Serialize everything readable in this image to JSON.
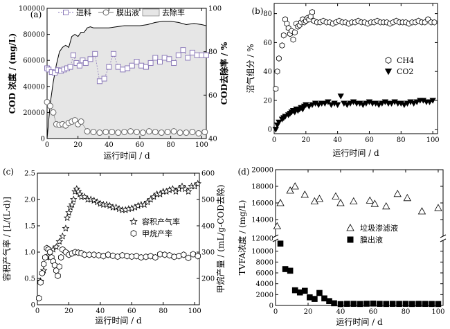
{
  "chart_data": [
    {
      "type": "line",
      "panel_label": "(a)",
      "xlabel": "运行时间 / d",
      "ylabel": "COD 浓度 / (mg/L)",
      "y2label": "COD去除率 / %",
      "xlim": [
        0,
        103
      ],
      "ylim": [
        0,
        100000
      ],
      "y2lim": [
        40,
        100
      ],
      "xticks": [
        "0",
        "20",
        "40",
        "60",
        "80",
        "100"
      ],
      "yticks": [
        "0",
        "20000",
        "40000",
        "60000",
        "80000",
        "100000"
      ],
      "y2ticks": [
        "40",
        "60",
        "80",
        "100"
      ],
      "legend": [
        "进料",
        "膜出液",
        "去除率"
      ],
      "series": [
        {
          "name": "进料",
          "marker": "square",
          "x": [
            0,
            1,
            3,
            5,
            7,
            9,
            11,
            13,
            15,
            17,
            19,
            21,
            23,
            25,
            28,
            31,
            34,
            37,
            40,
            43,
            46,
            49,
            52,
            55,
            58,
            61,
            64,
            67,
            70,
            73,
            76,
            79,
            82,
            85,
            88,
            91,
            94,
            97,
            100,
            103
          ],
          "y": [
            54000,
            53000,
            51000,
            50500,
            52500,
            52000,
            53000,
            54000,
            55000,
            64000,
            58000,
            56000,
            60000,
            58000,
            61000,
            65000,
            44000,
            46000,
            55000,
            65000,
            55000,
            53000,
            54000,
            56000,
            59000,
            56000,
            55000,
            58000,
            62000,
            59000,
            62000,
            61000,
            58000,
            64000,
            68000,
            62000,
            66000,
            64000,
            64000,
            64000
          ]
        },
        {
          "name": "膜出液",
          "marker": "circle",
          "x": [
            0,
            2,
            4,
            6,
            8,
            10,
            12,
            14,
            16,
            18,
            20,
            22,
            26,
            30,
            34,
            38,
            42,
            46,
            50,
            54,
            58,
            62,
            66,
            70,
            74,
            78,
            82,
            86,
            90,
            94,
            98,
            102
          ],
          "y": [
            28000,
            25000,
            20000,
            11000,
            10500,
            11000,
            10000,
            12000,
            13000,
            14000,
            11000,
            13000,
            5500,
            5000,
            4500,
            5000,
            5000,
            4500,
            5000,
            5500,
            5000,
            4500,
            5500,
            5000,
            4500,
            5000,
            5500,
            4500,
            4500,
            5000,
            4000,
            5000
          ]
        },
        {
          "name": "去除率",
          "fill": "area",
          "x": [
            0,
            2,
            4,
            6,
            8,
            10,
            12,
            14,
            16,
            18,
            20,
            22,
            24,
            26,
            28,
            30,
            35,
            40,
            45,
            50,
            55,
            60,
            65,
            70,
            75,
            80,
            85,
            90,
            95,
            100,
            103
          ],
          "y": [
            40,
            56,
            66,
            74,
            80,
            82,
            83,
            82,
            87,
            88,
            87,
            89,
            89,
            91,
            91.5,
            91,
            91,
            91,
            91.5,
            92,
            92,
            92,
            92.5,
            93.5,
            94,
            94,
            93.5,
            92.5,
            93,
            92.5,
            92
          ]
        }
      ]
    },
    {
      "type": "scatter",
      "panel_label": "(b)",
      "xlabel": "运行时间 / d",
      "ylabel": "沼气组分 / %",
      "xlim": [
        0,
        103
      ],
      "ylim": [
        -3,
        87
      ],
      "xticks": [
        "0",
        "20",
        "40",
        "60",
        "80",
        "100"
      ],
      "yticks": [
        "0",
        "20",
        "40",
        "60",
        "80"
      ],
      "legend": [
        "CH4",
        "CO2"
      ],
      "series": [
        {
          "name": "CH4",
          "marker": "hexagon",
          "x": [
            1,
            2,
            3,
            5,
            6,
            7,
            8,
            9,
            10,
            11,
            12,
            13,
            14,
            15,
            16,
            17,
            18,
            19,
            20,
            21,
            22,
            23,
            24,
            25,
            27,
            29,
            31,
            33,
            35,
            37,
            39,
            41,
            43,
            45,
            47,
            49,
            51,
            53,
            55,
            57,
            59,
            61,
            63,
            65,
            67,
            69,
            71,
            73,
            75,
            77,
            79,
            81,
            83,
            85,
            87,
            89,
            91,
            93,
            95,
            97,
            99,
            101
          ],
          "y": [
            28,
            40,
            49,
            58,
            65,
            76,
            73,
            70,
            66,
            68,
            62,
            67,
            73,
            71,
            72,
            74,
            76,
            74,
            75,
            77,
            76,
            78,
            81,
            75,
            74,
            74,
            75,
            74,
            74,
            73,
            74,
            75,
            74,
            74,
            73,
            74,
            74,
            75,
            74,
            74,
            73,
            74,
            74,
            75,
            74,
            74,
            74,
            73,
            74,
            75,
            74,
            74,
            74,
            73,
            74,
            74,
            75,
            74,
            74,
            76,
            74,
            74
          ]
        },
        {
          "name": "CO2",
          "marker": "triangle-down",
          "x": [
            1,
            2,
            3,
            5,
            6,
            7,
            9,
            10,
            11,
            12,
            13,
            14,
            15,
            16,
            17,
            18,
            19,
            20,
            22,
            24,
            26,
            28,
            30,
            32,
            34,
            36,
            38,
            40,
            42,
            44,
            46,
            48,
            50,
            52,
            54,
            56,
            58,
            60,
            62,
            64,
            66,
            68,
            70,
            72,
            74,
            76,
            78,
            80,
            82,
            84,
            86,
            88,
            90,
            92,
            94,
            96,
            98,
            100
          ],
          "y": [
            0,
            3,
            5,
            7,
            8,
            9,
            10,
            11,
            12,
            13,
            12,
            14,
            13,
            14,
            15,
            14,
            16,
            17,
            16,
            17,
            18,
            17,
            18,
            18,
            19,
            17,
            18,
            17,
            23,
            18,
            17,
            18,
            19,
            18,
            18,
            17,
            18,
            19,
            18,
            18,
            17,
            18,
            19,
            18,
            18,
            19,
            18,
            18,
            17,
            18,
            19,
            18,
            19,
            20,
            20,
            19,
            19,
            20
          ]
        }
      ]
    },
    {
      "type": "scatter",
      "panel_label": "(c)",
      "xlabel": "运行时间 / d",
      "ylabel": "容积产气率 / [L/(L·d)]",
      "y2label": "甲烷产量 / (mL/g-COD去除)",
      "xlim": [
        0,
        103
      ],
      "ylim": [
        0,
        2.5
      ],
      "y2lim": [
        100,
        600
      ],
      "xticks": [
        "0",
        "20",
        "40",
        "60",
        "80",
        "100"
      ],
      "yticks": [
        "0",
        "0.5",
        "1.0",
        "1.5",
        "2.0",
        "2.5"
      ],
      "y2ticks": [
        "200",
        "300",
        "400",
        "500",
        "600"
      ],
      "legend": [
        "容积产气率",
        "甲烷产率"
      ],
      "series": [
        {
          "name": "容积产气率",
          "marker": "star",
          "axis": "left",
          "x": [
            2,
            4,
            6,
            8,
            10,
            12,
            14,
            16,
            18,
            19,
            20,
            21,
            22,
            23,
            24,
            25,
            26,
            27,
            28,
            30,
            32,
            34,
            36,
            38,
            40,
            42,
            44,
            46,
            48,
            50,
            52,
            54,
            56,
            58,
            60,
            62,
            64,
            66,
            68,
            70,
            72,
            74,
            76,
            78,
            80,
            82,
            84,
            86,
            88,
            90,
            92,
            94,
            96,
            98,
            100,
            102
          ],
          "y": [
            0.45,
            0.65,
            0.9,
            1.0,
            1.05,
            1.1,
            1.2,
            1.3,
            1.45,
            1.65,
            1.75,
            1.85,
            1.9,
            2.0,
            2.15,
            2.2,
            2.15,
            2.1,
            2.05,
            2.05,
            2.0,
            2.0,
            1.98,
            1.95,
            1.92,
            1.9,
            1.9,
            1.88,
            1.85,
            1.85,
            1.82,
            1.8,
            1.8,
            1.82,
            1.83,
            1.85,
            1.88,
            1.9,
            1.9,
            1.95,
            2.0,
            2.05,
            2.1,
            2.1,
            2.15,
            2.15,
            2.18,
            2.2,
            2.15,
            2.2,
            2.25,
            2.2,
            2.15,
            2.25,
            2.25,
            2.3
          ]
        },
        {
          "name": "甲烷产率",
          "marker": "hexagon",
          "axis": "right",
          "x": [
            1,
            2,
            3,
            4,
            5,
            6,
            7,
            8,
            9,
            10,
            11,
            12,
            13,
            14,
            15,
            16,
            18,
            20,
            22,
            24,
            26,
            28,
            30,
            33,
            36,
            39,
            42,
            45,
            48,
            51,
            54,
            57,
            60,
            63,
            66,
            69,
            72,
            75,
            78,
            81,
            84,
            87,
            90,
            93,
            96,
            99,
            102
          ],
          "y": [
            125,
            185,
            220,
            255,
            280,
            315,
            310,
            300,
            280,
            265,
            250,
            230,
            210,
            245,
            280,
            310,
            300,
            290,
            295,
            300,
            298,
            296,
            290,
            290,
            290,
            288,
            285,
            290,
            286,
            283,
            288,
            285,
            283,
            285,
            280,
            282,
            285,
            280,
            292,
            290,
            288,
            282,
            285,
            290,
            278,
            292,
            285
          ]
        }
      ]
    },
    {
      "type": "scatter",
      "panel_label": "(d)",
      "xlabel": "运行时间 / d",
      "ylabel": "TVFA浓度 / (mg/L)",
      "xlim": [
        0,
        103
      ],
      "broken_axis": true,
      "xticks": [
        "0",
        "20",
        "40",
        "60",
        "80",
        "100"
      ],
      "yticks": [
        "0",
        "2000",
        "4000",
        "6000",
        "8000",
        "10000",
        "12000",
        "14000",
        "16000",
        "18000",
        "20000"
      ],
      "legend": [
        "垃圾渗滤液",
        "膜出液"
      ],
      "series": [
        {
          "name": "垃圾渗滤液",
          "marker": "triangle-up",
          "x": [
            1,
            3,
            9,
            12,
            18,
            24,
            27,
            37,
            40,
            48,
            58,
            61,
            68,
            75,
            81,
            90,
            100
          ],
          "y": [
            13200,
            16000,
            17500,
            18000,
            17000,
            16200,
            16500,
            16800,
            16000,
            16200,
            16300,
            15900,
            15600,
            17100,
            16600,
            15000,
            15400
          ]
        },
        {
          "name": "膜出液",
          "marker": "square",
          "axis": "lower",
          "x": [
            3,
            6,
            9,
            12,
            15,
            18,
            21,
            24,
            27,
            30,
            33,
            36,
            40,
            44,
            48,
            52,
            56,
            60,
            64,
            68,
            72,
            76,
            80,
            84,
            88,
            92,
            96,
            100
          ],
          "y": [
            11400,
            6700,
            6400,
            2800,
            2400,
            2700,
            1500,
            1200,
            2300,
            1300,
            800,
            400,
            250,
            300,
            300,
            280,
            320,
            350,
            300,
            280,
            300,
            290,
            300,
            280,
            300,
            290,
            280,
            270
          ]
        }
      ]
    }
  ]
}
